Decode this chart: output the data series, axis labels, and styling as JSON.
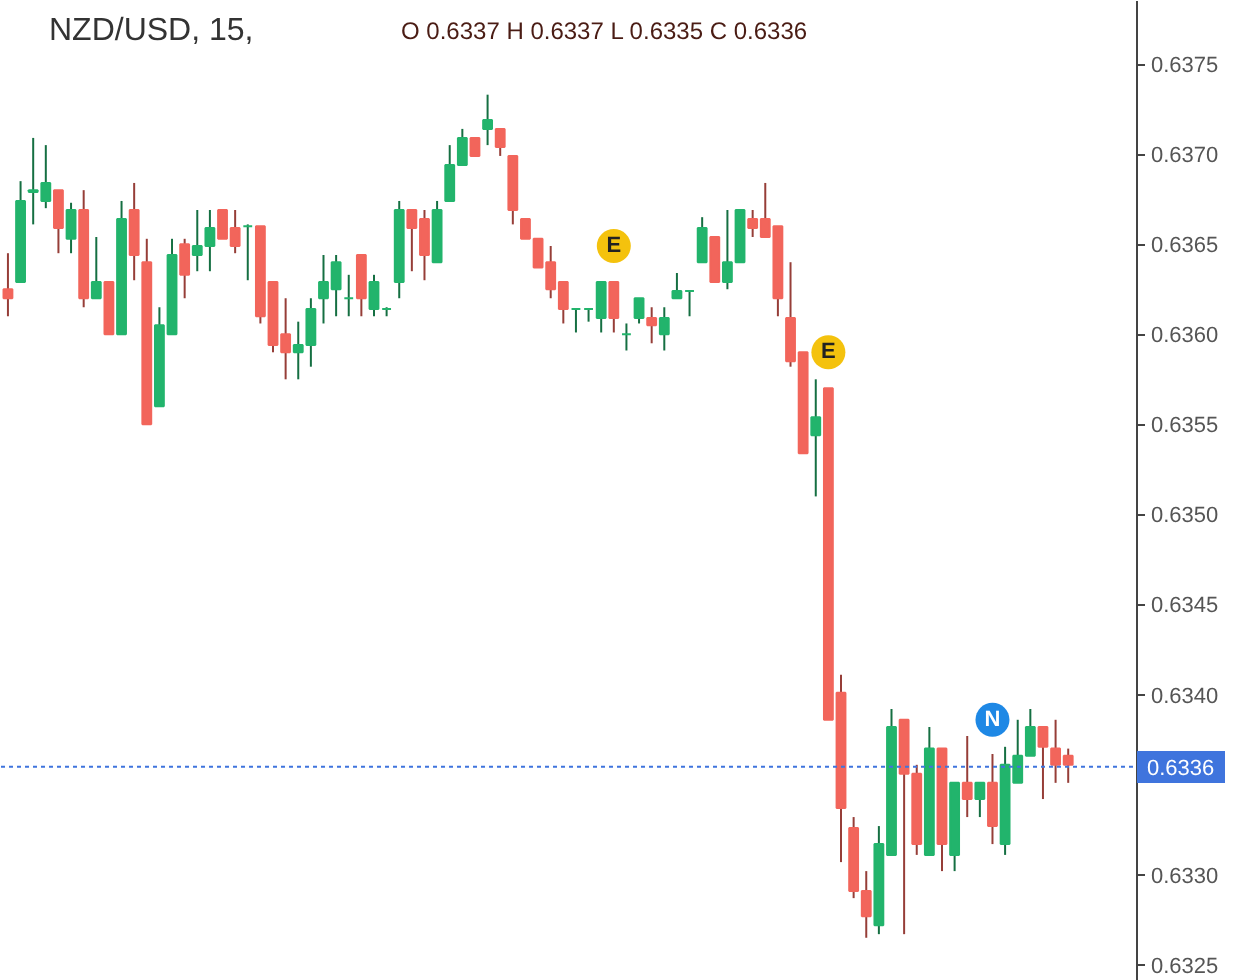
{
  "chart_data": {
    "type": "candlestick",
    "title": "NZD/USD, 15,",
    "annotations": [
      "O 0.6337 H 0.6337 L 0.6335 C 0.6336",
      {
        "text": "E",
        "y": 0.63649
      },
      {
        "text": "E",
        "y": 0.6359
      },
      {
        "text": "N",
        "y": 0.63386
      }
    ],
    "categories": [
      null,
      null,
      null,
      null,
      null,
      null,
      null,
      null,
      null,
      null,
      null,
      null,
      null,
      null,
      null,
      null,
      null,
      null,
      null,
      null,
      null,
      null,
      null,
      null,
      null,
      null,
      null,
      null,
      null,
      null,
      null,
      null,
      null,
      null,
      null,
      null,
      null,
      null,
      null,
      null,
      null,
      null,
      null,
      null,
      null,
      null,
      null,
      null,
      null,
      null,
      null,
      null,
      null,
      null,
      null,
      null,
      null,
      null,
      null,
      null,
      null,
      null,
      null,
      null,
      null,
      null,
      null,
      null,
      null,
      null,
      null,
      null,
      null,
      null,
      null,
      null,
      null,
      null,
      null,
      null,
      null,
      null,
      null,
      null,
      null
    ],
    "ohlc": [
      [
        0.63625,
        0.63645,
        0.6361,
        0.6362
      ],
      [
        0.63629,
        0.63685,
        0.63629,
        0.63674
      ],
      [
        0.63679,
        0.63709,
        0.63661,
        0.6368
      ],
      [
        0.63674,
        0.63705,
        0.6367,
        0.63684
      ],
      [
        0.6368,
        0.6368,
        0.63645,
        0.63659
      ],
      [
        0.63653,
        0.63673,
        0.63645,
        0.63669
      ],
      [
        0.63669,
        0.6368,
        0.63615,
        0.6362
      ],
      [
        0.6362,
        0.63654,
        0.6362,
        0.63629
      ],
      [
        0.63629,
        0.63629,
        0.636,
        0.636
      ],
      [
        0.636,
        0.63674,
        0.636,
        0.63664
      ],
      [
        0.63669,
        0.63684,
        0.6363,
        0.63644
      ],
      [
        0.6364,
        0.63653,
        0.6355,
        0.6355
      ],
      [
        0.6356,
        0.63615,
        0.6356,
        0.63605
      ],
      [
        0.636,
        0.63653,
        0.636,
        0.63644
      ],
      [
        0.6365,
        0.63653,
        0.6362,
        0.63633
      ],
      [
        0.63644,
        0.63669,
        0.63635,
        0.63649
      ],
      [
        0.63649,
        0.63669,
        0.63635,
        0.63659
      ],
      [
        0.63669,
        0.63669,
        0.63653,
        0.63653
      ],
      [
        0.63659,
        0.63669,
        0.63645,
        0.63649
      ],
      [
        0.6366,
        0.63661,
        0.6363,
        0.6366
      ],
      [
        0.6366,
        0.6366,
        0.63606,
        0.6361
      ],
      [
        0.63629,
        0.63629,
        0.6359,
        0.63594
      ],
      [
        0.636,
        0.6362,
        0.63575,
        0.6359
      ],
      [
        0.6359,
        0.63607,
        0.63575,
        0.63594
      ],
      [
        0.63594,
        0.6362,
        0.63582,
        0.63614
      ],
      [
        0.6362,
        0.63644,
        0.63606,
        0.63629
      ],
      [
        0.63625,
        0.63644,
        0.6361,
        0.6364
      ],
      [
        0.6362,
        0.63633,
        0.6361,
        0.6362
      ],
      [
        0.63644,
        0.63644,
        0.6361,
        0.6362
      ],
      [
        0.63614,
        0.63633,
        0.6361,
        0.63629
      ],
      [
        0.63614,
        0.63615,
        0.6361,
        0.63614
      ],
      [
        0.63629,
        0.63674,
        0.6362,
        0.63669
      ],
      [
        0.63669,
        0.63669,
        0.63635,
        0.63659
      ],
      [
        0.63664,
        0.63669,
        0.6363,
        0.63644
      ],
      [
        0.6364,
        0.63674,
        0.6364,
        0.63669
      ],
      [
        0.63674,
        0.63705,
        0.63674,
        0.63694
      ],
      [
        0.63694,
        0.63714,
        0.63694,
        0.63709
      ],
      [
        0.63709,
        0.63709,
        0.63699,
        0.63699
      ],
      [
        0.63714,
        0.63733,
        0.63705,
        0.63719
      ],
      [
        0.63714,
        0.63714,
        0.63699,
        0.63704
      ],
      [
        0.63699,
        0.63699,
        0.63661,
        0.63669
      ],
      [
        0.63664,
        0.63664,
        0.63653,
        0.63653
      ],
      [
        0.63653,
        0.63653,
        0.63637,
        0.63637
      ],
      [
        0.6364,
        0.63649,
        0.6362,
        0.63625
      ],
      [
        0.63629,
        0.63629,
        0.63606,
        0.63614
      ],
      [
        0.63614,
        0.63614,
        0.63601,
        0.63614
      ],
      [
        0.63614,
        0.63614,
        0.63607,
        0.63614
      ],
      [
        0.63609,
        0.63629,
        0.63601,
        0.63629
      ],
      [
        0.63629,
        0.63629,
        0.63601,
        0.63609
      ],
      [
        0.636,
        0.63606,
        0.63591,
        0.636
      ],
      [
        0.63609,
        0.6362,
        0.63606,
        0.6362
      ],
      [
        0.63609,
        0.63615,
        0.63595,
        0.63605
      ],
      [
        0.636,
        0.63615,
        0.63591,
        0.63609
      ],
      [
        0.6362,
        0.63634,
        0.6362,
        0.63624
      ],
      [
        0.63624,
        0.63624,
        0.6361,
        0.63624
      ],
      [
        0.6364,
        0.63665,
        0.6364,
        0.63659
      ],
      [
        0.63654,
        0.63654,
        0.63629,
        0.63629
      ],
      [
        0.63629,
        0.63669,
        0.63625,
        0.6364
      ],
      [
        0.6364,
        0.63669,
        0.6364,
        0.63669
      ],
      [
        0.63664,
        0.63669,
        0.63654,
        0.63659
      ],
      [
        0.63664,
        0.63684,
        0.63654,
        0.63654
      ],
      [
        0.6366,
        0.6366,
        0.6361,
        0.6362
      ],
      [
        0.63609,
        0.6364,
        0.63582,
        0.63585
      ],
      [
        0.6359,
        0.6359,
        0.63534,
        0.63534
      ],
      [
        0.63544,
        0.63575,
        0.6351,
        0.63554
      ],
      [
        0.6357,
        0.6357,
        0.63386,
        0.63386
      ],
      [
        0.63401,
        0.63411,
        0.63307,
        0.63337
      ],
      [
        0.63326,
        0.63332,
        0.63287,
        0.63291
      ],
      [
        0.63291,
        0.63302,
        0.63265,
        0.63277
      ],
      [
        0.63272,
        0.63327,
        0.63267,
        0.63317
      ],
      [
        0.63311,
        0.63392,
        0.63311,
        0.63382
      ],
      [
        0.63386,
        0.63386,
        0.63267,
        0.63356
      ],
      [
        0.63356,
        0.63361,
        0.63311,
        0.63317
      ],
      [
        0.63311,
        0.63382,
        0.63311,
        0.6337
      ],
      [
        0.6337,
        0.6337,
        0.63302,
        0.63317
      ],
      [
        0.63311,
        0.63351,
        0.63302,
        0.63351
      ],
      [
        0.63351,
        0.63377,
        0.63332,
        0.63342
      ],
      [
        0.63342,
        0.63351,
        0.63332,
        0.63351
      ],
      [
        0.63351,
        0.63367,
        0.63317,
        0.63327
      ],
      [
        0.63317,
        0.63371,
        0.63311,
        0.63361
      ],
      [
        0.63351,
        0.63386,
        0.63351,
        0.63366
      ],
      [
        0.63366,
        0.63392,
        0.63366,
        0.63382
      ],
      [
        0.63382,
        0.63382,
        0.63342,
        0.63371
      ],
      [
        0.6337,
        0.63386,
        0.63351,
        0.63361
      ],
      [
        0.63366,
        0.6337,
        0.63351,
        0.63361
      ]
    ],
    "colors": [
      "#f2655b",
      "#22b46c",
      "#22b46c",
      "#22b46c",
      "#f2655b",
      "#22b46c",
      "#f2655b",
      "#22b46c",
      "#f2655b",
      "#22b46c",
      "#f2655b",
      "#f2655b",
      "#22b46c",
      "#22b46c",
      "#f2655b",
      "#22b46c",
      "#22b46c",
      "#f2655b",
      "#f2655b",
      "#22b46c",
      "#f2655b",
      "#f2655b",
      "#f2655b",
      "#22b46c",
      "#22b46c",
      "#22b46c",
      "#22b46c",
      "#22b46c",
      "#f2655b",
      "#22b46c",
      "#22b46c",
      "#22b46c",
      "#f2655b",
      "#f2655b",
      "#22b46c",
      "#22b46c",
      "#22b46c",
      "#f2655b",
      "#22b46c",
      "#f2655b",
      "#f2655b",
      "#f2655b",
      "#f2655b",
      "#f2655b",
      "#f2655b",
      "#22b46c",
      "#22b46c",
      "#22b46c",
      "#f2655b",
      "#22b46c",
      "#22b46c",
      "#f2655b",
      "#22b46c",
      "#22b46c",
      "#22b46c",
      "#22b46c",
      "#f2655b",
      "#22b46c",
      "#22b46c",
      "#f2655b",
      "#f2655b",
      "#f2655b",
      "#f2655b",
      "#f2655b",
      "#22b46c",
      "#f2655b",
      "#f2655b",
      "#f2655b",
      "#f2655b",
      "#22b46c",
      "#22b46c",
      "#f2655b",
      "#f2655b",
      "#22b46c",
      "#f2655b",
      "#22b46c",
      "#f2655b",
      "#22b46c",
      "#f2655b",
      "#22b46c",
      "#22b46c",
      "#22b46c",
      "#f2655b",
      "#f2655b",
      "#f2655b"
    ],
    "ylim": [
      0.63241,
      0.63785
    ],
    "yticks": [
      0.6325,
      {
        "value": 0.633,
        "label": "0.6330"
      },
      {
        "value": 0.634,
        "label": "0.6340"
      },
      0.6345,
      {
        "value": 0.635,
        "label": "0.6350"
      },
      0.6355,
      {
        "value": 0.636,
        "label": "0.6360"
      },
      0.6365,
      {
        "value": 0.637,
        "label": "0.6370"
      },
      0.6375
    ],
    "tick_labels": "y",
    "ref_lines": [
      {
        "axis": "y",
        "value": 0.6336,
        "label": "0.6336",
        "color": "#3f74dd",
        "line_style": "dotted"
      }
    ]
  }
}
